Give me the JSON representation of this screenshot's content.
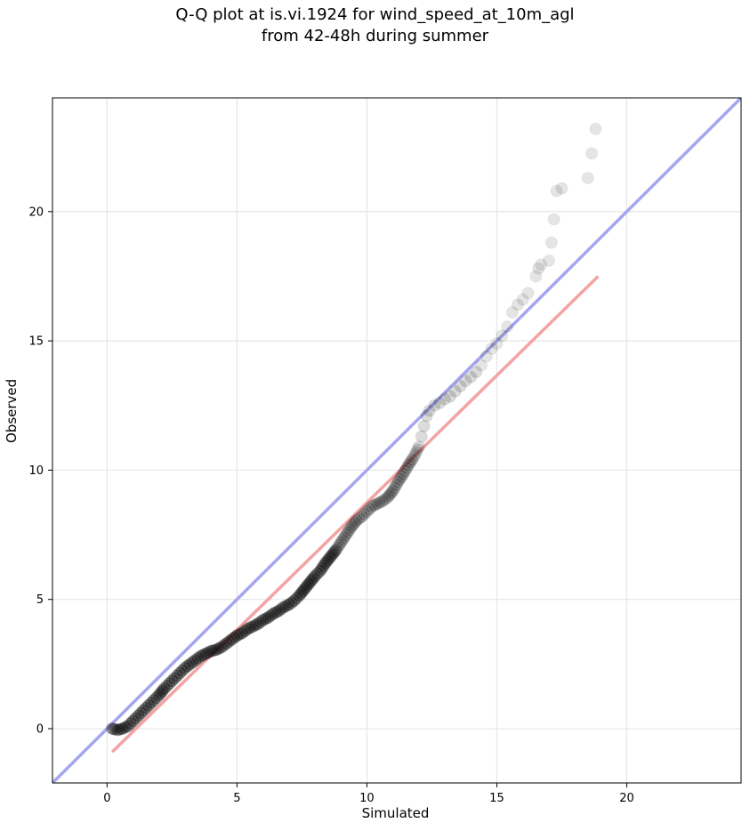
{
  "chart_data": {
    "type": "scatter",
    "title": "Q-Q plot at is.vi.1924 for wind_speed_at_10m_agl",
    "subtitle": "from 42-48h during summer",
    "xlabel": "Simulated",
    "ylabel": "Observed",
    "xlim": [
      -2.1,
      24.4
    ],
    "ylim": [
      -2.1,
      24.4
    ],
    "xticks": [
      0,
      5,
      10,
      15,
      20
    ],
    "yticks": [
      0,
      5,
      10,
      15,
      20
    ],
    "grid": true,
    "colors": {
      "points": "#000000",
      "identity_line": "#a6a6f0",
      "fit_line": "#f4a3a3"
    },
    "identity_line": {
      "x": [
        -2.1,
        24.4
      ],
      "y": [
        -2.1,
        24.4
      ]
    },
    "fit_line": {
      "x": [
        0.2,
        18.9
      ],
      "y": [
        -0.9,
        17.5
      ]
    },
    "quantile_points": [
      [
        0.2,
        0.0
      ],
      [
        0.4,
        -0.05
      ],
      [
        0.6,
        0.0
      ],
      [
        0.8,
        0.1
      ],
      [
        1.0,
        0.3
      ],
      [
        1.2,
        0.5
      ],
      [
        1.4,
        0.7
      ],
      [
        1.6,
        0.9
      ],
      [
        1.8,
        1.1
      ],
      [
        2.0,
        1.3
      ],
      [
        2.2,
        1.55
      ],
      [
        2.4,
        1.75
      ],
      [
        2.6,
        1.95
      ],
      [
        2.8,
        2.15
      ],
      [
        3.0,
        2.35
      ],
      [
        3.2,
        2.5
      ],
      [
        3.4,
        2.65
      ],
      [
        3.6,
        2.8
      ],
      [
        3.8,
        2.9
      ],
      [
        4.0,
        3.0
      ],
      [
        4.2,
        3.05
      ],
      [
        4.4,
        3.15
      ],
      [
        4.6,
        3.3
      ],
      [
        4.8,
        3.45
      ],
      [
        5.0,
        3.6
      ],
      [
        5.2,
        3.7
      ],
      [
        5.4,
        3.85
      ],
      [
        5.6,
        3.95
      ],
      [
        5.8,
        4.05
      ],
      [
        6.0,
        4.2
      ],
      [
        6.2,
        4.3
      ],
      [
        6.4,
        4.45
      ],
      [
        6.6,
        4.55
      ],
      [
        6.8,
        4.7
      ],
      [
        7.0,
        4.8
      ],
      [
        7.2,
        4.95
      ],
      [
        7.4,
        5.15
      ],
      [
        7.6,
        5.4
      ],
      [
        7.8,
        5.65
      ],
      [
        8.0,
        5.9
      ],
      [
        8.2,
        6.1
      ],
      [
        8.4,
        6.4
      ],
      [
        8.6,
        6.65
      ],
      [
        8.8,
        6.9
      ],
      [
        9.0,
        7.2
      ],
      [
        9.2,
        7.5
      ],
      [
        9.4,
        7.8
      ],
      [
        9.6,
        8.05
      ],
      [
        9.8,
        8.2
      ],
      [
        10.0,
        8.4
      ],
      [
        10.2,
        8.6
      ],
      [
        10.4,
        8.7
      ],
      [
        10.6,
        8.8
      ],
      [
        10.8,
        8.95
      ],
      [
        11.0,
        9.2
      ],
      [
        11.2,
        9.55
      ],
      [
        11.4,
        9.85
      ],
      [
        11.6,
        10.2
      ],
      [
        11.8,
        10.5
      ],
      [
        12.0,
        10.9
      ],
      [
        12.1,
        11.3
      ],
      [
        12.2,
        11.7
      ],
      [
        12.3,
        12.1
      ],
      [
        12.4,
        12.3
      ],
      [
        12.6,
        12.5
      ],
      [
        12.8,
        12.6
      ],
      [
        13.0,
        12.75
      ],
      [
        13.2,
        12.85
      ],
      [
        13.4,
        13.05
      ],
      [
        13.6,
        13.25
      ],
      [
        13.8,
        13.45
      ],
      [
        14.0,
        13.6
      ],
      [
        14.2,
        13.8
      ],
      [
        14.4,
        14.05
      ],
      [
        14.6,
        14.4
      ],
      [
        14.8,
        14.7
      ],
      [
        15.0,
        14.9
      ],
      [
        15.2,
        15.2
      ],
      [
        15.4,
        15.55
      ],
      [
        15.6,
        16.1
      ],
      [
        15.8,
        16.4
      ],
      [
        16.0,
        16.6
      ],
      [
        16.2,
        16.85
      ],
      [
        16.5,
        17.5
      ],
      [
        16.6,
        17.8
      ],
      [
        16.7,
        17.95
      ],
      [
        17.0,
        18.1
      ],
      [
        17.1,
        18.8
      ],
      [
        17.2,
        19.7
      ],
      [
        17.3,
        20.8
      ],
      [
        17.5,
        20.9
      ],
      [
        18.5,
        21.3
      ],
      [
        18.8,
        23.2
      ]
    ]
  }
}
